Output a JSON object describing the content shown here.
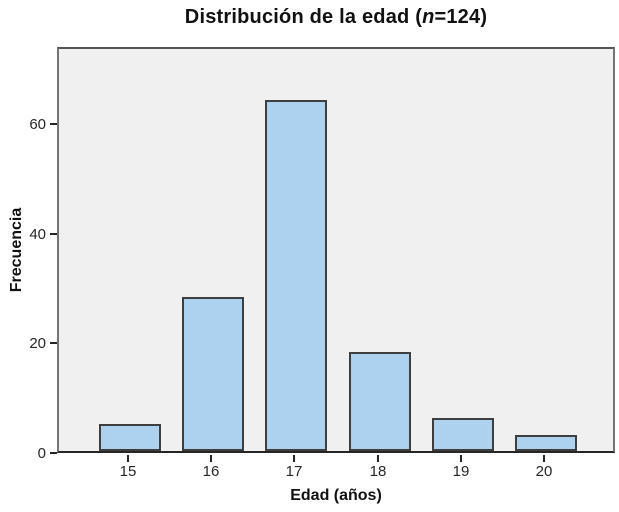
{
  "chart_data": {
    "type": "bar",
    "title": "Distribución de la edad (n=124)",
    "title_parts": {
      "prefix": "Distribución de la edad (",
      "italic": "n",
      "suffix": "=124)"
    },
    "xlabel": "Edad (años)",
    "ylabel": "Frecuencia",
    "categories": [
      "15",
      "16",
      "17",
      "18",
      "19",
      "20"
    ],
    "values": [
      5,
      28,
      64,
      18,
      6,
      3
    ],
    "yticks": [
      0,
      20,
      40,
      60
    ],
    "ylim": [
      0,
      74
    ],
    "grid": false,
    "legend": false,
    "colors": {
      "bar_fill": "#ADD2EF",
      "bar_border": "#3E3E3E",
      "plot_bg": "#F0F0F0",
      "frame": "#6E6E6E",
      "axis_line": "#262626",
      "tick_text": "#262626",
      "title_text": "#111111"
    }
  }
}
